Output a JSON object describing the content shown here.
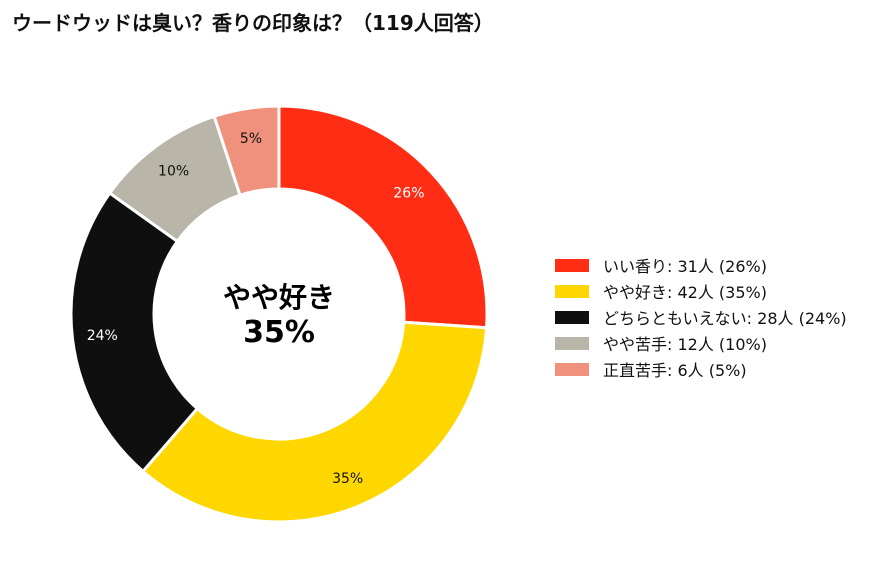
{
  "chart_data": {
    "type": "pie",
    "title": "ウードウッドは臭い？香りの印象は？（119人回答）",
    "center_label": {
      "line1": "やや好き",
      "line2": "35%"
    },
    "slices": [
      {
        "label": "いい香り",
        "count": 31,
        "count_text": "31人",
        "percent": 26,
        "percent_text": "26%",
        "legend_text": "いい香り:  31人 (26%)",
        "color": "#FF2D14",
        "label_color": "#FFFFFF"
      },
      {
        "label": "やや好き",
        "count": 42,
        "count_text": "42人",
        "percent": 35,
        "percent_text": "35%",
        "legend_text": "やや好き:  42人 (35%)",
        "color": "#FFD700",
        "label_color": "#111111"
      },
      {
        "label": "どちらともいえない",
        "count": 28,
        "count_text": "28人",
        "percent": 24,
        "percent_text": "24%",
        "legend_text": "どちらともいえない:  28人 (24%)",
        "color": "#0F0F0F",
        "label_color": "#FFFFFF"
      },
      {
        "label": "やや苦手",
        "count": 12,
        "count_text": "12人",
        "percent": 10,
        "percent_text": "10%",
        "legend_text": "やや苦手:  12人 (10%)",
        "color": "#B9B5A9",
        "label_color": "#111111"
      },
      {
        "label": "正直苦手",
        "count": 6,
        "count_text": "6人",
        "percent": 5,
        "percent_text": "5%",
        "legend_text": "正直苦手:  6人 (5%)",
        "color": "#F0917D",
        "label_color": "#111111"
      }
    ],
    "legend_position": "right"
  }
}
